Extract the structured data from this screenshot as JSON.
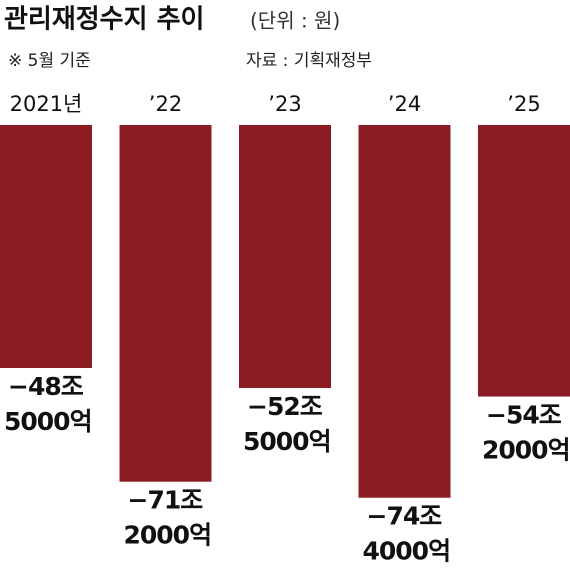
{
  "chart_data": {
    "type": "bar",
    "title": "관리재정수지 추이",
    "subtitle": "(단위 : 원)",
    "note": "※ 5월 기준",
    "source": "자료 : 기획재정부",
    "categories": [
      "2021년",
      "’22",
      "’23",
      "’24",
      "’25"
    ],
    "values": [
      -48.5,
      -71.2,
      -52.5,
      -74.4,
      -54.2
    ],
    "value_labels": [
      [
        "−48조",
        "5000억"
      ],
      [
        "−71조",
        "2000억"
      ],
      [
        "−52조",
        "5000억"
      ],
      [
        "−74조",
        "4000억"
      ],
      [
        "−54조",
        "2000억"
      ]
    ],
    "color": "#8b1c23"
  }
}
